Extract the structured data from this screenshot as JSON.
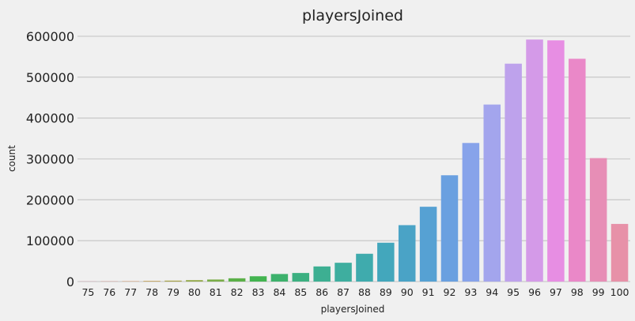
{
  "chart_data": {
    "type": "bar",
    "title": "playersJoined",
    "xlabel": "playersJoined",
    "ylabel": "count",
    "categories": [
      "75",
      "76",
      "77",
      "78",
      "79",
      "80",
      "81",
      "82",
      "83",
      "84",
      "85",
      "86",
      "87",
      "88",
      "89",
      "90",
      "91",
      "92",
      "93",
      "94",
      "95",
      "96",
      "97",
      "98",
      "99",
      "100"
    ],
    "values": [
      300,
      500,
      800,
      1500,
      2300,
      3500,
      5000,
      8000,
      13000,
      18500,
      21000,
      37000,
      46000,
      68000,
      95000,
      138000,
      183000,
      260000,
      339000,
      433000,
      533000,
      592000,
      590000,
      545000,
      302000,
      141000
    ],
    "ylim": [
      0,
      620000
    ],
    "yticks": [
      0,
      100000,
      200000,
      300000,
      400000,
      500000,
      600000
    ],
    "ytick_labels": [
      "0",
      "100000",
      "200000",
      "300000",
      "400000",
      "500000",
      "600000"
    ],
    "grid": "horizontal",
    "legend": "none",
    "colors": [
      "#e8849b",
      "#e58c78",
      "#dc955e",
      "#c19a48",
      "#a8a34a",
      "#93a94a",
      "#7aad48",
      "#5bb048",
      "#43b450",
      "#3db16c",
      "#3cb081",
      "#3daf92",
      "#3eae9f",
      "#3fabad",
      "#43a7bc",
      "#4aa3c6",
      "#56a1d3",
      "#6aa0e0",
      "#87a3ea",
      "#a3a5ed",
      "#bea2ec",
      "#d49ae8",
      "#e78ee3",
      "#ea88c8",
      "#e78eb6",
      "#e791a8"
    ]
  }
}
